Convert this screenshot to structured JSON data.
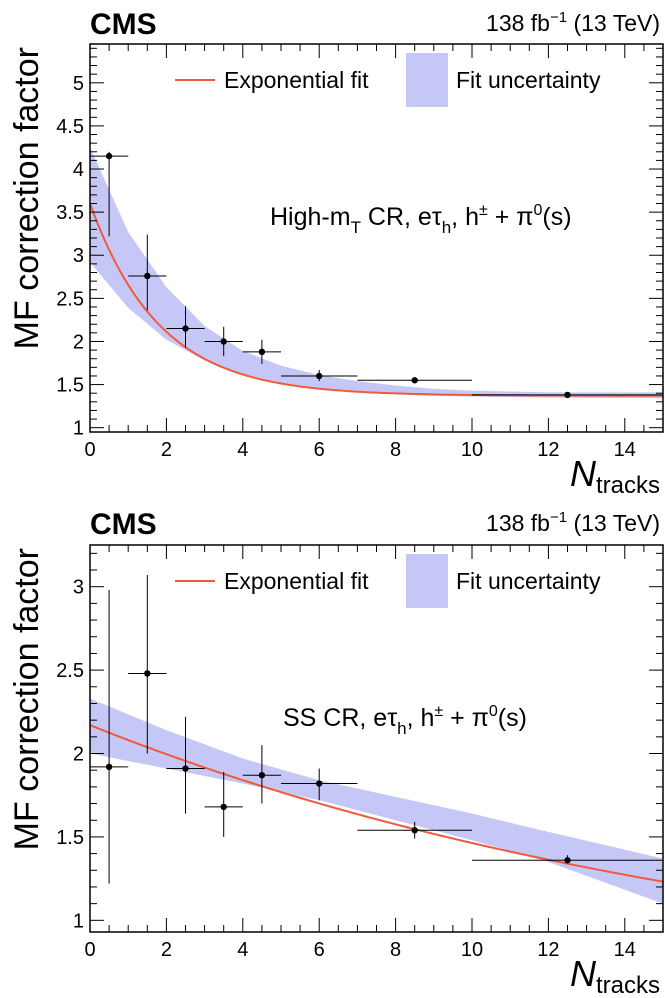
{
  "chart_data": [
    {
      "type": "scatter",
      "experiment": "CMS",
      "lumi": {
        "value": "138 fb",
        "exp": "−1",
        "energy": "(13 TeV)"
      },
      "ylabel": "MF correction factor",
      "xlabel": {
        "main": "N",
        "sub": "tracks"
      },
      "region_label": {
        "a": "High-m",
        "a_sub": "T",
        "b": " CR, eτ",
        "b_sub": "h",
        "c": ", h",
        "c_sup": "±",
        "d": " + π",
        "d_sup": "0",
        "e": "(s)"
      },
      "legend": {
        "fit": "Exponential fit",
        "band": "Fit uncertainty"
      },
      "xlim": [
        0,
        15
      ],
      "ylim": [
        0.95,
        5.45
      ],
      "xticks": [
        0,
        2,
        4,
        6,
        8,
        10,
        12,
        14
      ],
      "yticks": [
        1,
        1.5,
        2,
        2.5,
        3,
        3.5,
        4,
        4.5,
        5
      ],
      "ytick_labels": [
        "1",
        "1.5",
        "2",
        "2.5",
        "3",
        "3.5",
        "4",
        "4.5",
        "5"
      ],
      "points": [
        {
          "x": 0.5,
          "y": 4.15,
          "xerr": 0.5,
          "ylo": 3.22,
          "yhi": 4.2
        },
        {
          "x": 1.5,
          "y": 2.76,
          "xerr": 0.5,
          "ylo": 2.36,
          "yhi": 3.24
        },
        {
          "x": 2.5,
          "y": 2.15,
          "xerr": 0.5,
          "ylo": 1.93,
          "yhi": 2.41
        },
        {
          "x": 3.5,
          "y": 2.0,
          "xerr": 0.5,
          "ylo": 1.83,
          "yhi": 2.17
        },
        {
          "x": 4.5,
          "y": 1.88,
          "xerr": 0.5,
          "ylo": 1.74,
          "yhi": 2.02
        },
        {
          "x": 6.0,
          "y": 1.6,
          "xerr": 1.0,
          "ylo": 1.54,
          "yhi": 1.67
        },
        {
          "x": 8.5,
          "y": 1.55,
          "xerr": 1.5,
          "ylo": 1.52,
          "yhi": 1.58
        },
        {
          "x": 12.5,
          "y": 1.38,
          "xerr": 2.5,
          "ylo": 1.36,
          "yhi": 1.41
        }
      ],
      "fit": {
        "model": "exponential",
        "asymptote": 1.37,
        "amplitude": 2.23,
        "decay": 0.55
      },
      "band": {
        "x": [
          0,
          1,
          2,
          3,
          4,
          5,
          6,
          7,
          8,
          9,
          10,
          12,
          15
        ],
        "lo": [
          2.92,
          2.39,
          2.02,
          1.78,
          1.62,
          1.52,
          1.46,
          1.42,
          1.39,
          1.37,
          1.36,
          1.35,
          1.34
        ],
        "hi": [
          4.25,
          3.27,
          2.63,
          2.18,
          1.89,
          1.72,
          1.61,
          1.54,
          1.49,
          1.45,
          1.43,
          1.41,
          1.41
        ]
      },
      "colors": {
        "fit": "#f05a3c",
        "band": "#c5c8f7",
        "points": "#000000"
      }
    },
    {
      "type": "scatter",
      "experiment": "CMS",
      "lumi": {
        "value": "138 fb",
        "exp": "−1",
        "energy": "(13 TeV)"
      },
      "ylabel": "MF correction factor",
      "xlabel": {
        "main": "N",
        "sub": "tracks"
      },
      "region_label": {
        "a": "SS",
        "a_sub": "",
        "b": " CR, eτ",
        "b_sub": "h",
        "c": ", h",
        "c_sup": "±",
        "d": " + π",
        "d_sup": "0",
        "e": "(s)"
      },
      "legend": {
        "fit": "Exponential fit",
        "band": "Fit uncertainty"
      },
      "xlim": [
        0,
        15
      ],
      "ylim": [
        0.93,
        3.25
      ],
      "xticks": [
        0,
        2,
        4,
        6,
        8,
        10,
        12,
        14
      ],
      "yticks": [
        1,
        1.5,
        2,
        2.5,
        3
      ],
      "ytick_labels": [
        "1",
        "1.5",
        "2",
        "2.5",
        "3"
      ],
      "points": [
        {
          "x": 0.5,
          "y": 1.92,
          "xerr": 0.5,
          "ylo": 1.22,
          "yhi": 2.98
        },
        {
          "x": 1.5,
          "y": 2.48,
          "xerr": 0.5,
          "ylo": 2.0,
          "yhi": 3.07
        },
        {
          "x": 2.5,
          "y": 1.91,
          "xerr": 0.5,
          "ylo": 1.64,
          "yhi": 2.22
        },
        {
          "x": 3.5,
          "y": 1.68,
          "xerr": 0.5,
          "ylo": 1.5,
          "yhi": 1.89
        },
        {
          "x": 4.5,
          "y": 1.87,
          "xerr": 0.5,
          "ylo": 1.7,
          "yhi": 2.05
        },
        {
          "x": 6.0,
          "y": 1.82,
          "xerr": 1.0,
          "ylo": 1.72,
          "yhi": 1.91
        },
        {
          "x": 8.5,
          "y": 1.54,
          "xerr": 1.5,
          "ylo": 1.49,
          "yhi": 1.59
        },
        {
          "x": 12.5,
          "y": 1.36,
          "xerr": 2.5,
          "ylo": 1.34,
          "yhi": 1.39
        }
      ],
      "fit": {
        "model": "exponential",
        "asymptote": 0.5,
        "amplitude": 1.67,
        "decay": 0.055
      },
      "band": {
        "x": [
          0,
          2,
          4,
          6,
          8,
          10,
          12,
          15
        ],
        "lo": [
          2.0,
          1.91,
          1.82,
          1.72,
          1.6,
          1.48,
          1.35,
          1.1
        ],
        "hi": [
          2.33,
          2.14,
          1.97,
          1.84,
          1.74,
          1.64,
          1.53,
          1.37
        ]
      },
      "colors": {
        "fit": "#f05a3c",
        "band": "#c5c8f7",
        "points": "#000000"
      }
    }
  ]
}
